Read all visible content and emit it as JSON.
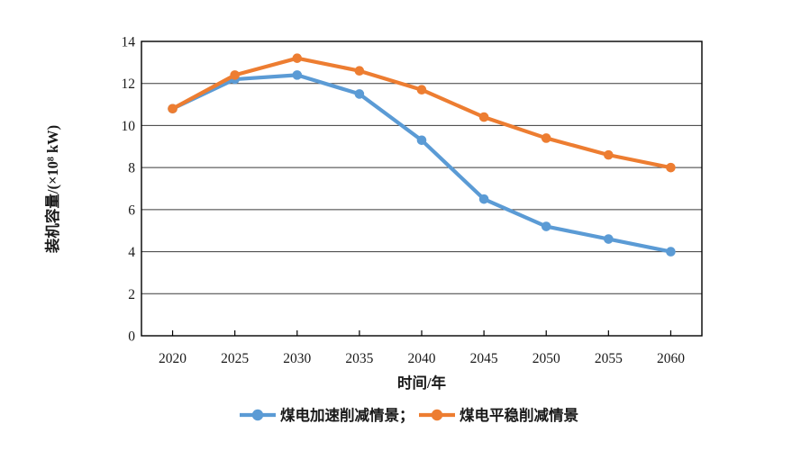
{
  "figure": {
    "background": "#ffffff",
    "axis_color": "#000000",
    "grid_color": "#3a3a3a",
    "text_color": "#1a1a1a"
  },
  "chart_data": {
    "type": "line",
    "title": "",
    "xlabel": "时间/年",
    "ylabel": "装机容量/(×10⁸ kW)",
    "categories": [
      "2020",
      "2025",
      "2030",
      "2035",
      "2040",
      "2045",
      "2050",
      "2055",
      "2060"
    ],
    "series": [
      {
        "name": "煤电加速削减情景",
        "legend_label": "煤电加速削减情景；",
        "color": "#5B9BD5",
        "values": [
          10.8,
          12.2,
          12.4,
          11.5,
          9.3,
          6.5,
          5.2,
          4.6,
          4.0
        ]
      },
      {
        "name": "煤电平稳削减情景",
        "legend_label": "煤电平稳削减情景",
        "color": "#ED7D31",
        "values": [
          10.8,
          12.4,
          13.2,
          12.6,
          11.7,
          10.4,
          9.4,
          8.6,
          8.0
        ]
      }
    ],
    "ylim": [
      0,
      14
    ],
    "yticks": [
      0,
      2,
      4,
      6,
      8,
      10,
      12,
      14
    ],
    "grid": true,
    "legend_position": "bottom",
    "marker": "circle"
  }
}
